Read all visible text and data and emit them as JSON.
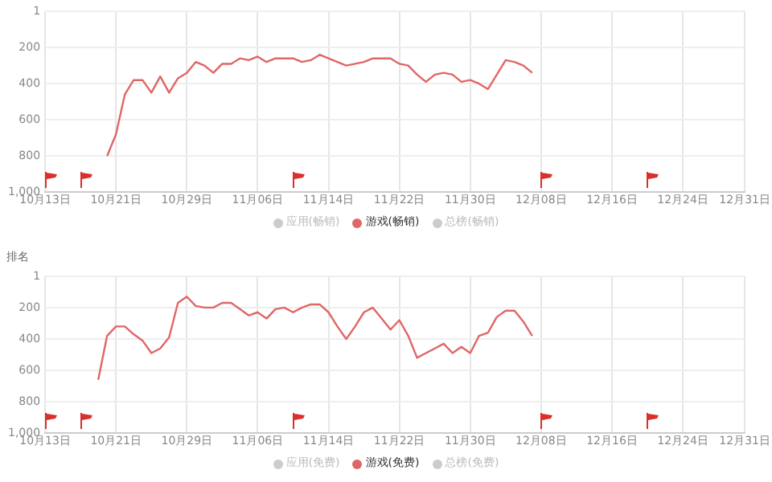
{
  "chart_data": [
    {
      "type": "line",
      "x": [
        "--10-20",
        "--10-21",
        "--10-22",
        "--10-23",
        "--10-24",
        "--10-25",
        "--10-26",
        "--10-27",
        "--10-28",
        "--10-29",
        "--10-30",
        "--10-31",
        "--11-01",
        "--11-02",
        "--11-03",
        "--11-04",
        "--11-05",
        "--11-06",
        "--11-07",
        "--11-08",
        "--11-09",
        "--11-10",
        "--11-11",
        "--11-12",
        "--11-13",
        "--11-14",
        "--11-15",
        "--11-16",
        "--11-17",
        "--11-18",
        "--11-19",
        "--11-20",
        "--11-21",
        "--11-22",
        "--11-23",
        "--11-24",
        "--11-25",
        "--11-26",
        "--11-27",
        "--11-28",
        "--11-29",
        "--11-30",
        "--12-01",
        "--12-02",
        "--12-03",
        "--12-04",
        "--12-05",
        "--12-06",
        "--12-07"
      ],
      "series": [
        {
          "name": "游戏(畅销)",
          "color": "#e06666",
          "values": [
            800,
            680,
            460,
            380,
            380,
            450,
            360,
            450,
            370,
            340,
            280,
            300,
            340,
            290,
            290,
            260,
            270,
            250,
            280,
            260,
            260,
            260,
            280,
            270,
            240,
            260,
            280,
            300,
            290,
            280,
            260,
            260,
            260,
            290,
            300,
            350,
            390,
            350,
            340,
            350,
            390,
            380,
            400,
            430,
            350,
            270,
            280,
            300,
            340
          ]
        }
      ],
      "annotations": [
        "应用(畅销)",
        "总榜(畅销)"
      ],
      "ylim": [
        1000,
        1
      ],
      "yticks": [
        1,
        200,
        400,
        600,
        800,
        {
          "value": 1000,
          "label": "1,000"
        }
      ],
      "xlim": [
        "--10-13",
        "--12-31"
      ],
      "xticks": [
        {
          "value": "--10-13",
          "label": "10月13日"
        },
        {
          "value": "--10-21",
          "label": "10月21日"
        },
        {
          "value": "--10-29",
          "label": "10月29日"
        },
        {
          "value": "--11-06",
          "label": "11月06日"
        },
        {
          "value": "--11-14",
          "label": "11月14日"
        },
        {
          "value": "--11-22",
          "label": "11月22日"
        },
        {
          "value": "--11-30",
          "label": "11月30日"
        },
        {
          "value": "--12-08",
          "label": "12月08日"
        },
        {
          "value": "--12-16",
          "label": "12月16日"
        },
        {
          "value": "--12-24",
          "label": "12月24日"
        },
        {
          "value": "--12-31",
          "label": "12月31日"
        }
      ],
      "grid": true,
      "legend": "bottom",
      "marker": "none",
      "line_style": "solid"
    },
    {
      "type": "line",
      "ylabel": "排名",
      "x": [
        "--10-19",
        "--10-20",
        "--10-21",
        "--10-22",
        "--10-23",
        "--10-24",
        "--10-25",
        "--10-26",
        "--10-27",
        "--10-28",
        "--10-29",
        "--10-30",
        "--10-31",
        "--11-01",
        "--11-02",
        "--11-03",
        "--11-04",
        "--11-05",
        "--11-06",
        "--11-07",
        "--11-08",
        "--11-09",
        "--11-10",
        "--11-11",
        "--11-12",
        "--11-13",
        "--11-14",
        "--11-15",
        "--11-16",
        "--11-17",
        "--11-18",
        "--11-19",
        "--11-20",
        "--11-21",
        "--11-22",
        "--11-23",
        "--11-24",
        "--11-25",
        "--11-26",
        "--11-27",
        "--11-28",
        "--11-29",
        "--11-30",
        "--12-01",
        "--12-02",
        "--12-03",
        "--12-04",
        "--12-05",
        "--12-06",
        "--12-07"
      ],
      "series": [
        {
          "name": "游戏(免费)",
          "color": "#e06666",
          "values": [
            660,
            380,
            320,
            320,
            370,
            410,
            490,
            460,
            390,
            170,
            130,
            190,
            200,
            200,
            170,
            170,
            210,
            250,
            230,
            270,
            210,
            200,
            230,
            200,
            180,
            180,
            230,
            320,
            400,
            320,
            230,
            200,
            270,
            340,
            280,
            380,
            520,
            490,
            460,
            430,
            490,
            450,
            490,
            380,
            360,
            260,
            220,
            220,
            290,
            380
          ]
        }
      ],
      "annotations": [
        "应用(免费)",
        "总榜(免费)"
      ],
      "ylim": [
        1000,
        1
      ],
      "yticks": [
        1,
        200,
        400,
        600,
        800,
        {
          "value": 1000,
          "label": "1,000"
        }
      ],
      "xlim": [
        "--10-13",
        "--12-31"
      ],
      "xticks": [
        {
          "value": "--10-13",
          "label": "10月13日"
        },
        {
          "value": "--10-21",
          "label": "10月21日"
        },
        {
          "value": "--10-29",
          "label": "10月29日"
        },
        {
          "value": "--11-06",
          "label": "11月06日"
        },
        {
          "value": "--11-14",
          "label": "11月14日"
        },
        {
          "value": "--11-22",
          "label": "11月22日"
        },
        {
          "value": "--11-30",
          "label": "11月30日"
        },
        {
          "value": "--12-08",
          "label": "12月08日"
        },
        {
          "value": "--12-16",
          "label": "12月16日"
        },
        {
          "value": "--12-24",
          "label": "12月24日"
        },
        {
          "value": "--12-31",
          "label": "12月31日"
        }
      ],
      "grid": true,
      "legend": "bottom",
      "marker": "none",
      "line_style": "solid"
    }
  ]
}
